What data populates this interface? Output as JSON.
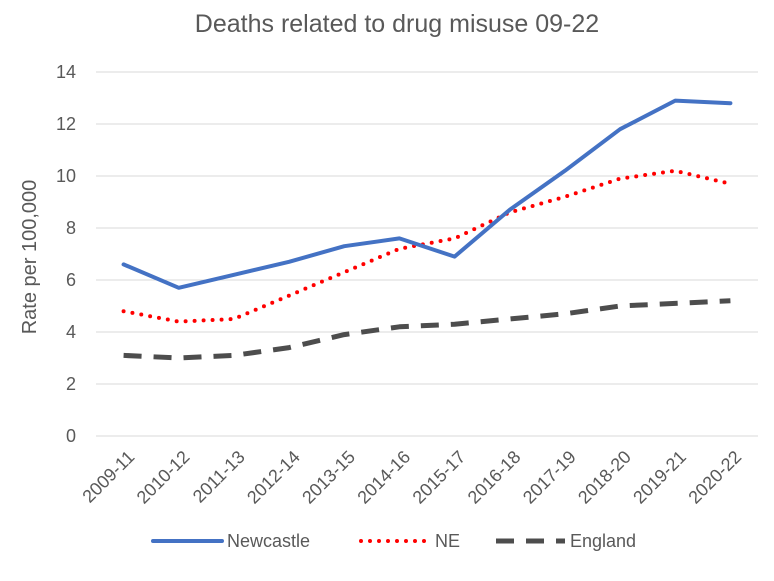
{
  "chart_data": {
    "type": "line",
    "title": "Deaths related to drug misuse 09-22",
    "xlabel": "",
    "ylabel": "Rate per 100,000",
    "ylim": [
      0,
      14
    ],
    "y_ticks": [
      0,
      2,
      4,
      6,
      8,
      10,
      12,
      14
    ],
    "grid": true,
    "legend_position": "bottom",
    "categories": [
      "2009-11",
      "2010-12",
      "2011-13",
      "2012-14",
      "2013-15",
      "2014-16",
      "2015-17",
      "2016-18",
      "2017-19",
      "2018-20",
      "2019-21",
      "2020-22"
    ],
    "series": [
      {
        "name": "Newcastle",
        "color": "#4472C4",
        "style": "solid",
        "values": [
          6.6,
          5.7,
          6.2,
          6.7,
          7.3,
          7.6,
          6.9,
          8.7,
          10.2,
          11.8,
          12.9,
          12.8
        ]
      },
      {
        "name": "NE",
        "color": "#FF0000",
        "style": "dotted",
        "values": [
          4.8,
          4.4,
          4.5,
          5.4,
          6.3,
          7.2,
          7.6,
          8.6,
          9.2,
          9.9,
          10.2,
          9.7
        ]
      },
      {
        "name": "England",
        "color": "#4D4D4D",
        "style": "dashed",
        "values": [
          3.1,
          3.0,
          3.1,
          3.4,
          3.9,
          4.2,
          4.3,
          4.5,
          4.7,
          5.0,
          5.1,
          5.2
        ]
      }
    ]
  }
}
